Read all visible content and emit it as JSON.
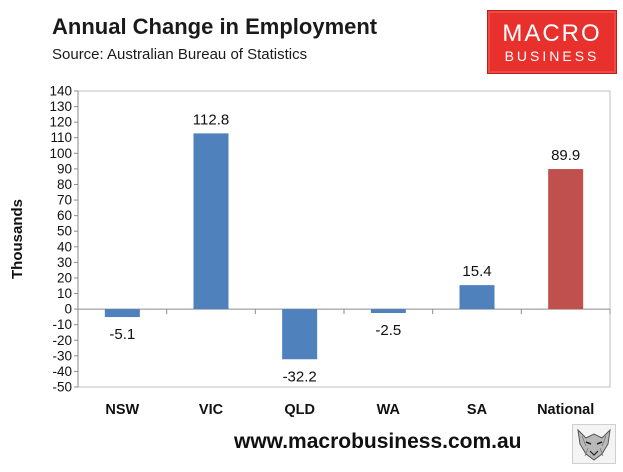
{
  "header": {
    "title": "Annual Change in Employment",
    "subtitle": "Source: Australian Bureau of Statistics"
  },
  "logo": {
    "line1": "MACRO",
    "line2": "BUSINESS",
    "color": "#e8302c"
  },
  "footer": {
    "url": "www.macrobusiness.com.au",
    "mascot_icon": "wolf-head-icon"
  },
  "chart_data": {
    "type": "bar",
    "title": "Annual Change in Employment",
    "xlabel": "",
    "ylabel": "Thousands",
    "categories": [
      "NSW",
      "VIC",
      "QLD",
      "WA",
      "SA",
      "National"
    ],
    "values": [
      -5.1,
      112.8,
      -32.2,
      -2.5,
      15.4,
      89.9
    ],
    "data_labels": [
      "-5.1",
      "112.8",
      "-32.2",
      "-2.5",
      "15.4",
      "89.9"
    ],
    "bar_colors": [
      "#4f81bd",
      "#4f81bd",
      "#4f81bd",
      "#4f81bd",
      "#4f81bd",
      "#c0504d"
    ],
    "ylim": [
      -50,
      140
    ],
    "yticks": [
      -50,
      -40,
      -30,
      -20,
      -10,
      0,
      10,
      20,
      30,
      40,
      50,
      60,
      70,
      80,
      90,
      100,
      110,
      120,
      130,
      140
    ],
    "grid": false,
    "legend": "none"
  }
}
